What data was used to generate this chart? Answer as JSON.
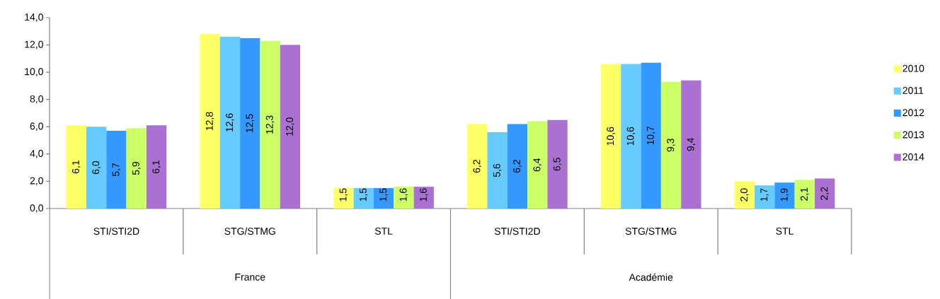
{
  "chart_data": {
    "type": "bar",
    "categories": [
      "STI/STI2D",
      "STG/STMG",
      "STL",
      "STI/STI2D",
      "STG/STMG",
      "STL"
    ],
    "annotations": [
      "France",
      "Académie"
    ],
    "series": [
      {
        "name": "2010",
        "color": "#ffff66",
        "values": [
          6.1,
          12.8,
          1.5,
          6.2,
          10.6,
          2.0
        ],
        "value_labels": [
          "6,1",
          "12,8",
          "1,5",
          "6,2",
          "10,6",
          "2,0"
        ]
      },
      {
        "name": "2011",
        "color": "#66ccff",
        "values": [
          6.0,
          12.6,
          1.5,
          5.6,
          10.6,
          1.7
        ],
        "value_labels": [
          "6,0",
          "12,6",
          "1,5",
          "5,6",
          "10,6",
          "1,7"
        ]
      },
      {
        "name": "2012",
        "color": "#3399ff",
        "values": [
          5.7,
          12.5,
          1.5,
          6.2,
          10.7,
          1.9
        ],
        "value_labels": [
          "5,7",
          "12,5",
          "1,5",
          "6,2",
          "10,7",
          "1,9"
        ]
      },
      {
        "name": "2013",
        "color": "#ccff66",
        "values": [
          5.9,
          12.3,
          1.6,
          6.4,
          9.3,
          2.1
        ],
        "value_labels": [
          "5,9",
          "12,3",
          "1,6",
          "6,4",
          "9,3",
          "2,1"
        ]
      },
      {
        "name": "2014",
        "color": "#aa71d2",
        "values": [
          6.1,
          12.0,
          1.6,
          6.5,
          9.4,
          2.2
        ],
        "value_labels": [
          "6,1",
          "12,0",
          "1,6",
          "6,5",
          "9,4",
          "2,2"
        ]
      }
    ],
    "ylim": [
      0,
      14
    ],
    "yticks": [
      {
        "value": 0,
        "label": "0,0"
      },
      {
        "value": 2,
        "label": "2,0"
      },
      {
        "value": 4,
        "label": "4,0"
      },
      {
        "value": 6,
        "label": "6,0"
      },
      {
        "value": 8,
        "label": "8,0"
      },
      {
        "value": 10,
        "label": "10,0"
      },
      {
        "value": 12,
        "label": "12,0"
      },
      {
        "value": 14,
        "label": "14,0"
      }
    ],
    "grid": false,
    "legend": "right"
  }
}
